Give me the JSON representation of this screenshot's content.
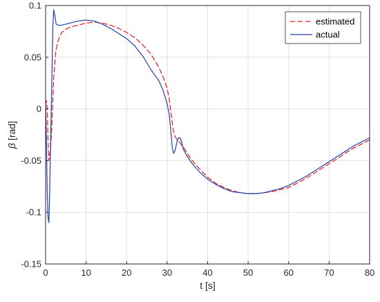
{
  "chart_data": {
    "type": "line",
    "xlabel": "t [s]",
    "ylabel_symbol": "β",
    "ylabel_unit": " [rad]",
    "xlim": [
      0,
      80
    ],
    "ylim": [
      -0.15,
      0.1
    ],
    "xticks": [
      0,
      10,
      20,
      30,
      40,
      50,
      60,
      70,
      80
    ],
    "yticks": [
      -0.15,
      -0.1,
      -0.05,
      0,
      0.05,
      0.1
    ],
    "xtick_labels": [
      "0",
      "10",
      "20",
      "30",
      "40",
      "50",
      "60",
      "70",
      "80"
    ],
    "ytick_labels": [
      "-0.15",
      "-0.1",
      "-0.05",
      "0",
      "0.05",
      "0.1"
    ],
    "grid": true,
    "legend_position": "top-right",
    "series": [
      {
        "name": "estimated",
        "color": "#e8141e",
        "dash": "dashed",
        "x": [
          0,
          0.2,
          0.4,
          0.6,
          0.8,
          1.0,
          1.2,
          1.5,
          1.8,
          2.0,
          2.5,
          3,
          3.5,
          4,
          5,
          6,
          7,
          8,
          10,
          12,
          14,
          16,
          18,
          20,
          22,
          24,
          26,
          28,
          29,
          30,
          30.5,
          31,
          31.5,
          32,
          32.5,
          33,
          34,
          35,
          36,
          38,
          40,
          42,
          44,
          46,
          48,
          50,
          52,
          54,
          56,
          58,
          60,
          62,
          64,
          66,
          68,
          70,
          72,
          74,
          76,
          78,
          80
        ],
        "y": [
          0.005,
          0.008,
          0.0,
          -0.03,
          -0.05,
          -0.045,
          -0.04,
          -0.02,
          0.01,
          0.03,
          0.055,
          0.065,
          0.07,
          0.074,
          0.077,
          0.079,
          0.08,
          0.081,
          0.083,
          0.084,
          0.083,
          0.081,
          0.078,
          0.074,
          0.069,
          0.062,
          0.053,
          0.04,
          0.031,
          0.02,
          0.01,
          -0.005,
          -0.02,
          -0.027,
          -0.03,
          -0.032,
          -0.037,
          -0.043,
          -0.049,
          -0.058,
          -0.066,
          -0.072,
          -0.076,
          -0.079,
          -0.081,
          -0.082,
          -0.082,
          -0.081,
          -0.08,
          -0.078,
          -0.076,
          -0.072,
          -0.068,
          -0.063,
          -0.058,
          -0.053,
          -0.048,
          -0.043,
          -0.038,
          -0.034,
          -0.03
        ]
      },
      {
        "name": "actual",
        "color": "#1f3fa8",
        "dash": "solid",
        "x": [
          0,
          0.2,
          0.4,
          0.6,
          0.8,
          0.9,
          1.0,
          1.2,
          1.5,
          1.8,
          2.0,
          2.3,
          2.6,
          3,
          4,
          5,
          6,
          7,
          8,
          10,
          12,
          14,
          16,
          18,
          20,
          22,
          24,
          26,
          28,
          29,
          30,
          30.5,
          31,
          31.3,
          31.6,
          32,
          32.4,
          32.8,
          33.2,
          33.6,
          34,
          35,
          36,
          38,
          40,
          42,
          44,
          46,
          48,
          50,
          52,
          54,
          56,
          58,
          60,
          62,
          64,
          66,
          68,
          70,
          72,
          74,
          76,
          78,
          80
        ],
        "y": [
          0.005,
          -0.03,
          -0.08,
          -0.105,
          -0.11,
          -0.1,
          -0.08,
          -0.04,
          0.02,
          0.08,
          0.096,
          0.09,
          0.082,
          0.081,
          0.081,
          0.082,
          0.083,
          0.084,
          0.085,
          0.086,
          0.085,
          0.082,
          0.078,
          0.073,
          0.068,
          0.061,
          0.051,
          0.038,
          0.027,
          0.018,
          0.005,
          -0.005,
          -0.025,
          -0.038,
          -0.043,
          -0.04,
          -0.032,
          -0.028,
          -0.028,
          -0.032,
          -0.039,
          -0.046,
          -0.052,
          -0.061,
          -0.068,
          -0.073,
          -0.077,
          -0.08,
          -0.081,
          -0.082,
          -0.082,
          -0.081,
          -0.079,
          -0.077,
          -0.074,
          -0.07,
          -0.066,
          -0.061,
          -0.056,
          -0.051,
          -0.046,
          -0.041,
          -0.036,
          -0.032,
          -0.028
        ]
      }
    ]
  }
}
